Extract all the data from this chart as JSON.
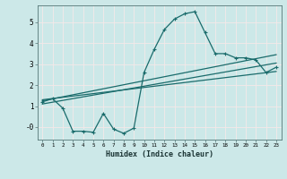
{
  "xlabel": "Humidex (Indice chaleur)",
  "ylabel": "",
  "bg_color": "#cce8e8",
  "grid_color": "#e8f8f8",
  "line_color": "#1a6b6b",
  "xlim": [
    -0.5,
    23.5
  ],
  "ylim": [
    -0.6,
    5.8
  ],
  "xticks": [
    0,
    1,
    2,
    3,
    4,
    5,
    6,
    7,
    8,
    9,
    10,
    11,
    12,
    13,
    14,
    15,
    16,
    17,
    18,
    19,
    20,
    21,
    22,
    23
  ],
  "yticks": [
    0,
    1,
    2,
    3,
    4,
    5
  ],
  "ytick_labels": [
    "-0",
    "1",
    "2",
    "3",
    "4",
    "5"
  ],
  "line1_x": [
    0,
    1,
    2,
    3,
    4,
    5,
    6,
    7,
    8,
    9,
    10,
    11,
    12,
    13,
    14,
    15,
    16,
    17,
    18,
    19,
    20,
    21,
    22,
    23
  ],
  "line1_y": [
    1.2,
    1.35,
    0.9,
    -0.2,
    -0.2,
    -0.25,
    0.65,
    -0.1,
    -0.3,
    -0.05,
    2.6,
    3.7,
    4.65,
    5.15,
    5.4,
    5.5,
    4.5,
    3.5,
    3.5,
    3.3,
    3.3,
    3.2,
    2.6,
    2.85
  ],
  "line2_x": [
    0,
    23
  ],
  "line2_y": [
    1.25,
    3.45
  ],
  "line3_x": [
    0,
    23
  ],
  "line3_y": [
    1.1,
    3.05
  ],
  "line4_x": [
    0,
    23
  ],
  "line4_y": [
    1.3,
    2.65
  ],
  "marker": "+"
}
